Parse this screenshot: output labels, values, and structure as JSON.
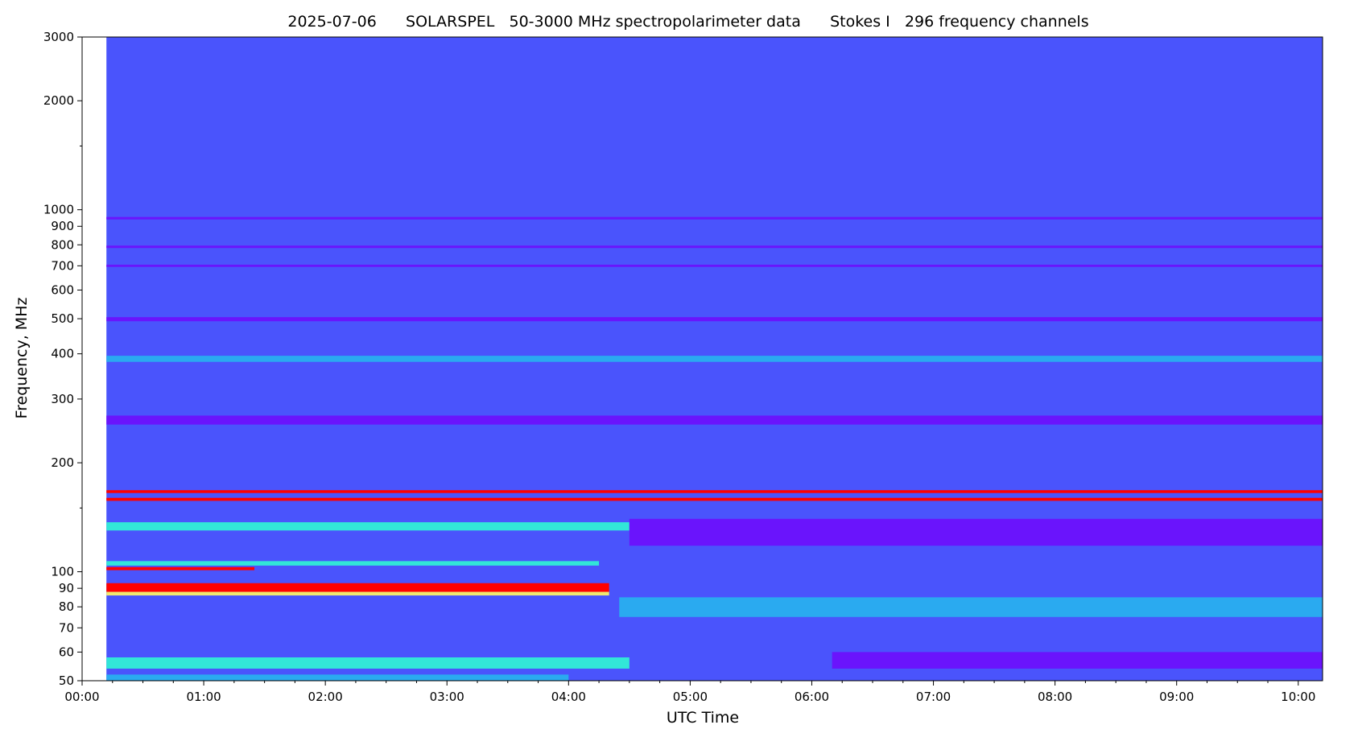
{
  "chart_data": {
    "type": "heatmap",
    "title": "2025-07-06      SOLARSPEL   50-3000 MHz spectropolarimeter data      Stokes I   296 frequency channels",
    "title_parts": {
      "date": "2025-07-06",
      "instrument": "SOLARSPEL   50-3000 MHz spectropolarimeter data",
      "stokes": "Stokes I   296 frequency channels"
    },
    "xlabel": "UTC Time",
    "ylabel": "Frequency, MHz",
    "x_ticks": [
      "00:00",
      "01:00",
      "02:00",
      "03:00",
      "04:00",
      "05:00",
      "06:00",
      "07:00",
      "08:00",
      "09:00",
      "10:00"
    ],
    "y_ticks": [
      {
        "value": 50,
        "label": "50"
      },
      {
        "value": 60,
        "label": "60"
      },
      {
        "value": 70,
        "label": "70"
      },
      {
        "value": 80,
        "label": "80"
      },
      {
        "value": 90,
        "label": "90"
      },
      {
        "value": 100,
        "label": "100"
      },
      {
        "value": 200,
        "label": "200"
      },
      {
        "value": 300,
        "label": "300"
      },
      {
        "value": 400,
        "label": "400"
      },
      {
        "value": 500,
        "label": "500"
      },
      {
        "value": 600,
        "label": "600"
      },
      {
        "value": 700,
        "label": "700"
      },
      {
        "value": 800,
        "label": "800"
      },
      {
        "value": 900,
        "label": "900"
      },
      {
        "value": 1000,
        "label": "1000"
      },
      {
        "value": 2000,
        "label": "2000"
      },
      {
        "value": 3000,
        "label": "3000"
      }
    ],
    "y_minor_ticks": [
      150,
      1500
    ],
    "y_scale": "log",
    "ylim": [
      50,
      3000
    ],
    "xlim": [
      "00:00",
      "10:12"
    ],
    "data_start": "00:12",
    "background_color": "#4a54fc",
    "colors": {
      "low": "#6a14fc",
      "base": "#4a54fc",
      "mid": "#2aaaf0",
      "cyan": "#32e6d8",
      "yellow": "#f0e870",
      "high": "#ff0000"
    },
    "bands": [
      {
        "f_lo": 940,
        "f_hi": 955,
        "t_start": "00:12",
        "t_end": "10:12",
        "level": "low"
      },
      {
        "f_lo": 784,
        "f_hi": 796,
        "t_start": "00:12",
        "t_end": "10:12",
        "level": "low"
      },
      {
        "f_lo": 695,
        "f_hi": 705,
        "t_start": "00:12",
        "t_end": "10:12",
        "level": "low"
      },
      {
        "f_lo": 492,
        "f_hi": 505,
        "t_start": "00:12",
        "t_end": "10:12",
        "level": "low"
      },
      {
        "f_lo": 255,
        "f_hi": 270,
        "t_start": "00:12",
        "t_end": "10:12",
        "level": "low"
      },
      {
        "f_lo": 380,
        "f_hi": 395,
        "t_start": "00:12",
        "t_end": "10:12",
        "level": "mid"
      },
      {
        "f_lo": 165,
        "f_hi": 168,
        "t_start": "00:12",
        "t_end": "10:12",
        "level": "high"
      },
      {
        "f_lo": 157,
        "f_hi": 160,
        "t_start": "00:12",
        "t_end": "10:12",
        "level": "high"
      },
      {
        "f_lo": 130,
        "f_hi": 137,
        "t_start": "00:12",
        "t_end": "04:30",
        "level": "cyan"
      },
      {
        "f_lo": 118,
        "f_hi": 140,
        "t_start": "04:30",
        "t_end": "10:12",
        "level": "low"
      },
      {
        "f_lo": 104,
        "f_hi": 107,
        "t_start": "00:12",
        "t_end": "04:15",
        "level": "cyan"
      },
      {
        "f_lo": 101,
        "f_hi": 103,
        "t_start": "00:12",
        "t_end": "01:25",
        "level": "high"
      },
      {
        "f_lo": 88,
        "f_hi": 93,
        "t_start": "00:12",
        "t_end": "04:20",
        "level": "high"
      },
      {
        "f_lo": 86,
        "f_hi": 88,
        "t_start": "00:12",
        "t_end": "04:20",
        "level": "yellow"
      },
      {
        "f_lo": 75,
        "f_hi": 85,
        "t_start": "04:25",
        "t_end": "10:12",
        "level": "mid"
      },
      {
        "f_lo": 54,
        "f_hi": 58,
        "t_start": "00:12",
        "t_end": "04:30",
        "level": "cyan"
      },
      {
        "f_lo": 54,
        "f_hi": 60,
        "t_start": "06:10",
        "t_end": "10:12",
        "level": "low"
      },
      {
        "f_lo": 50,
        "f_hi": 52,
        "t_start": "00:12",
        "t_end": "04:00",
        "level": "mid"
      }
    ],
    "grid": false
  }
}
